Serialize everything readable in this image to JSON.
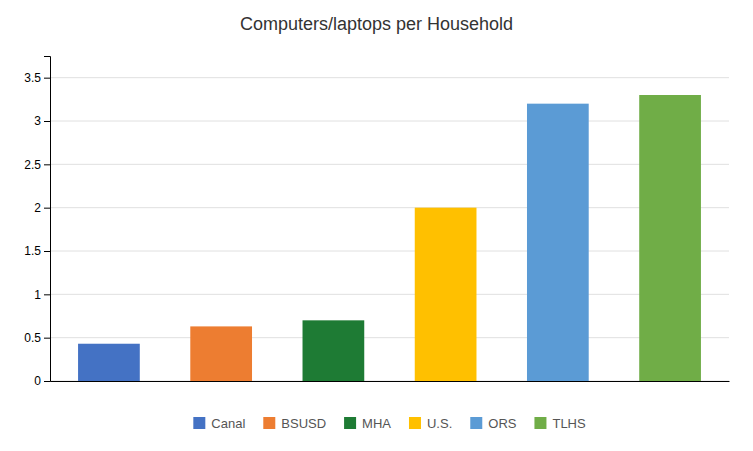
{
  "chart_data": {
    "type": "bar",
    "title": "Computers/laptops per Household",
    "categories": [
      "Canal",
      "BSUSD",
      "MHA",
      "U.S.",
      "ORS",
      "TLHS"
    ],
    "values": [
      0.43,
      0.63,
      0.7,
      2.0,
      3.2,
      3.3
    ],
    "colors": [
      "#4472c4",
      "#ed7d31",
      "#1e7b34",
      "#ffc000",
      "#5b9bd5",
      "#70ad47"
    ],
    "ylim": [
      0,
      3.75
    ],
    "yticks": [
      0,
      0.5,
      1,
      1.5,
      2,
      2.5,
      3,
      3.5
    ],
    "grid": true,
    "legend": "bottom",
    "tick_labels": "y"
  }
}
